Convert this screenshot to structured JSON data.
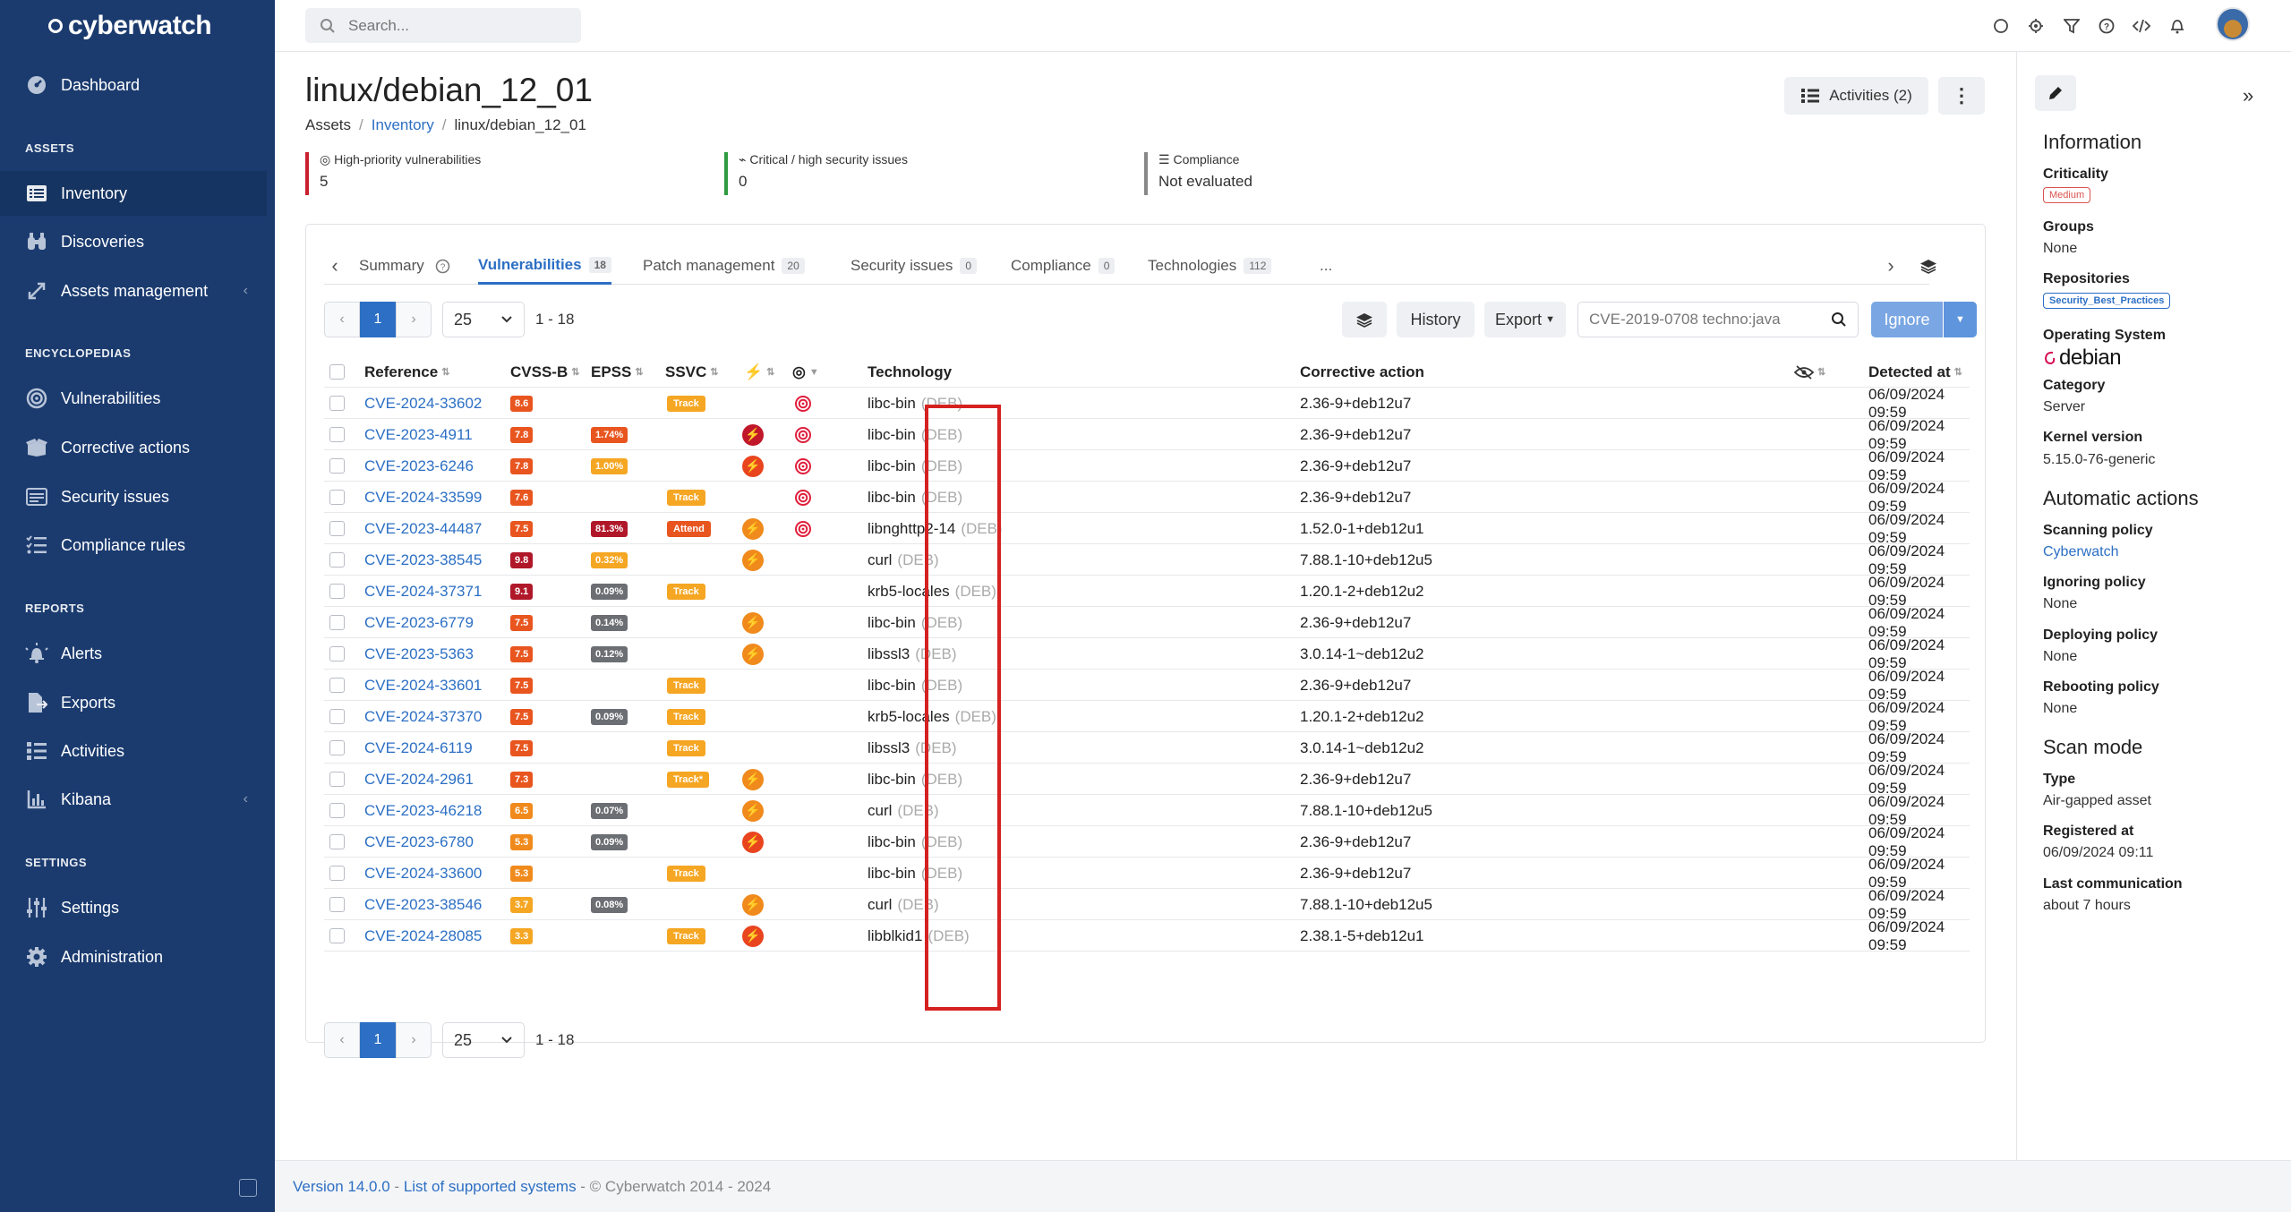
{
  "brand": {
    "name": "cyberwatch"
  },
  "sidebar": {
    "items": [
      {
        "label": "Dashboard"
      },
      {
        "label": "Inventory"
      },
      {
        "label": "Discoveries"
      },
      {
        "label": "Assets management"
      },
      {
        "label": "Vulnerabilities"
      },
      {
        "label": "Corrective actions"
      },
      {
        "label": "Security issues"
      },
      {
        "label": "Compliance rules"
      },
      {
        "label": "Alerts"
      },
      {
        "label": "Exports"
      },
      {
        "label": "Activities"
      },
      {
        "label": "Kibana"
      },
      {
        "label": "Settings"
      },
      {
        "label": "Administration"
      }
    ],
    "sections": [
      "ASSETS",
      "ENCYCLOPEDIAS",
      "REPORTS",
      "SETTINGS"
    ]
  },
  "topbar": {
    "search_placeholder": "Search..."
  },
  "page": {
    "title": "linux/debian_12_01",
    "breadcrumb": [
      "Assets",
      "Inventory",
      "linux/debian_12_01"
    ],
    "activities_label": "Activities (2)",
    "stats": [
      {
        "label": "High-priority vulnerabilities",
        "value": "5",
        "color": "#c8202f"
      },
      {
        "label": "Critical / high security issues",
        "value": "0",
        "color": "#2e9b3e"
      },
      {
        "label": "Compliance",
        "value": "Not evaluated",
        "color": "#888888"
      }
    ]
  },
  "tabs": [
    {
      "label": "Summary",
      "count": ""
    },
    {
      "label": "Vulnerabilities",
      "count": "18"
    },
    {
      "label": "Patch management",
      "count": "20"
    },
    {
      "label": "Security issues",
      "count": "0"
    },
    {
      "label": "Compliance",
      "count": "0"
    },
    {
      "label": "Technologies",
      "count": "112"
    },
    {
      "label": "...",
      "count": ""
    }
  ],
  "toolbar": {
    "page": "1",
    "per_page": "25",
    "range": "1 - 18",
    "history_label": "History",
    "export_label": "Export",
    "filter_value": "CVE-2019-0708 techno:java",
    "ignore_label": "Ignore"
  },
  "table": {
    "headers": {
      "reference": "Reference",
      "cvss": "CVSS-B",
      "epss": "EPSS",
      "ssvc": "SSVC",
      "technology": "Technology",
      "corrective": "Corrective action",
      "detected": "Detected at"
    },
    "rows": [
      {
        "ref": "CVE-2024-33602",
        "cvss": "8.6",
        "cvss_color": "#e8551f",
        "epss": "",
        "epss_color": "",
        "ssvc": "Track",
        "exploit": "",
        "target": true,
        "tech": "libc-bin",
        "pkg": "(DEB)",
        "fix": "2.36-9+deb12u7",
        "date": "06/09/2024 09:59"
      },
      {
        "ref": "CVE-2023-4911",
        "cvss": "7.8",
        "cvss_color": "#e8551f",
        "epss": "1.74%",
        "epss_color": "#e8551f",
        "ssvc": "",
        "exploit": "dark",
        "target": true,
        "tech": "libc-bin",
        "pkg": "(DEB)",
        "fix": "2.36-9+deb12u7",
        "date": "06/09/2024 09:59"
      },
      {
        "ref": "CVE-2023-6246",
        "cvss": "7.8",
        "cvss_color": "#e8551f",
        "epss": "1.00%",
        "epss_color": "#f5a623",
        "ssvc": "",
        "exploit": "red",
        "target": true,
        "tech": "libc-bin",
        "pkg": "(DEB)",
        "fix": "2.36-9+deb12u7",
        "date": "06/09/2024 09:59"
      },
      {
        "ref": "CVE-2024-33599",
        "cvss": "7.6",
        "cvss_color": "#e8551f",
        "epss": "",
        "epss_color": "",
        "ssvc": "Track",
        "exploit": "",
        "target": true,
        "tech": "libc-bin",
        "pkg": "(DEB)",
        "fix": "2.36-9+deb12u7",
        "date": "06/09/2024 09:59"
      },
      {
        "ref": "CVE-2023-44487",
        "cvss": "7.5",
        "cvss_color": "#e8551f",
        "epss": "81.3%",
        "epss_color": "#b0182a",
        "ssvc": "Attend",
        "exploit": "orange",
        "target": true,
        "tech": "libnghttp2-14",
        "pkg": "(DEB)",
        "fix": "1.52.0-1+deb12u1",
        "date": "06/09/2024 09:59"
      },
      {
        "ref": "CVE-2023-38545",
        "cvss": "9.8",
        "cvss_color": "#b0182a",
        "epss": "0.32%",
        "epss_color": "#f5a623",
        "ssvc": "",
        "exploit": "orange",
        "target": false,
        "tech": "curl",
        "pkg": "(DEB)",
        "fix": "7.88.1-10+deb12u5",
        "date": "06/09/2024 09:59"
      },
      {
        "ref": "CVE-2024-37371",
        "cvss": "9.1",
        "cvss_color": "#b0182a",
        "epss": "0.09%",
        "epss_color": "#6b6e73",
        "ssvc": "Track",
        "exploit": "",
        "target": false,
        "tech": "krb5-locales",
        "pkg": "(DEB)",
        "fix": "1.20.1-2+deb12u2",
        "date": "06/09/2024 09:59"
      },
      {
        "ref": "CVE-2023-6779",
        "cvss": "7.5",
        "cvss_color": "#e8551f",
        "epss": "0.14%",
        "epss_color": "#6b6e73",
        "ssvc": "",
        "exploit": "orange",
        "target": false,
        "tech": "libc-bin",
        "pkg": "(DEB)",
        "fix": "2.36-9+deb12u7",
        "date": "06/09/2024 09:59"
      },
      {
        "ref": "CVE-2023-5363",
        "cvss": "7.5",
        "cvss_color": "#e8551f",
        "epss": "0.12%",
        "epss_color": "#6b6e73",
        "ssvc": "",
        "exploit": "orange",
        "target": false,
        "tech": "libssl3",
        "pkg": "(DEB)",
        "fix": "3.0.14-1~deb12u2",
        "date": "06/09/2024 09:59"
      },
      {
        "ref": "CVE-2024-33601",
        "cvss": "7.5",
        "cvss_color": "#e8551f",
        "epss": "",
        "epss_color": "",
        "ssvc": "Track",
        "exploit": "",
        "target": false,
        "tech": "libc-bin",
        "pkg": "(DEB)",
        "fix": "2.36-9+deb12u7",
        "date": "06/09/2024 09:59"
      },
      {
        "ref": "CVE-2024-37370",
        "cvss": "7.5",
        "cvss_color": "#e8551f",
        "epss": "0.09%",
        "epss_color": "#6b6e73",
        "ssvc": "Track",
        "exploit": "",
        "target": false,
        "tech": "krb5-locales",
        "pkg": "(DEB)",
        "fix": "1.20.1-2+deb12u2",
        "date": "06/09/2024 09:59"
      },
      {
        "ref": "CVE-2024-6119",
        "cvss": "7.5",
        "cvss_color": "#e8551f",
        "epss": "",
        "epss_color": "",
        "ssvc": "Track",
        "exploit": "",
        "target": false,
        "tech": "libssl3",
        "pkg": "(DEB)",
        "fix": "3.0.14-1~deb12u2",
        "date": "06/09/2024 09:59"
      },
      {
        "ref": "CVE-2024-2961",
        "cvss": "7.3",
        "cvss_color": "#e8551f",
        "epss": "",
        "epss_color": "",
        "ssvc": "Track*",
        "exploit": "orange",
        "target": false,
        "tech": "libc-bin",
        "pkg": "(DEB)",
        "fix": "2.36-9+deb12u7",
        "date": "06/09/2024 09:59"
      },
      {
        "ref": "CVE-2023-46218",
        "cvss": "6.5",
        "cvss_color": "#f08a1c",
        "epss": "0.07%",
        "epss_color": "#6b6e73",
        "ssvc": "",
        "exploit": "orange",
        "target": false,
        "tech": "curl",
        "pkg": "(DEB)",
        "fix": "7.88.1-10+deb12u5",
        "date": "06/09/2024 09:59"
      },
      {
        "ref": "CVE-2023-6780",
        "cvss": "5.3",
        "cvss_color": "#f08a1c",
        "epss": "0.09%",
        "epss_color": "#6b6e73",
        "ssvc": "",
        "exploit": "red",
        "target": false,
        "tech": "libc-bin",
        "pkg": "(DEB)",
        "fix": "2.36-9+deb12u7",
        "date": "06/09/2024 09:59"
      },
      {
        "ref": "CVE-2024-33600",
        "cvss": "5.3",
        "cvss_color": "#f08a1c",
        "epss": "",
        "epss_color": "",
        "ssvc": "Track",
        "exploit": "",
        "target": false,
        "tech": "libc-bin",
        "pkg": "(DEB)",
        "fix": "2.36-9+deb12u7",
        "date": "06/09/2024 09:59"
      },
      {
        "ref": "CVE-2023-38546",
        "cvss": "3.7",
        "cvss_color": "#f5a623",
        "epss": "0.08%",
        "epss_color": "#6b6e73",
        "ssvc": "",
        "exploit": "orange",
        "target": false,
        "tech": "curl",
        "pkg": "(DEB)",
        "fix": "7.88.1-10+deb12u5",
        "date": "06/09/2024 09:59"
      },
      {
        "ref": "CVE-2024-28085",
        "cvss": "3.3",
        "cvss_color": "#f5a623",
        "epss": "",
        "epss_color": "",
        "ssvc": "Track",
        "exploit": "red",
        "target": false,
        "tech": "libblkid1",
        "pkg": "(DEB)",
        "fix": "2.38.1-5+deb12u1",
        "date": "06/09/2024 09:59"
      }
    ]
  },
  "panel": {
    "information_title": "Information",
    "criticality_label": "Criticality",
    "criticality_value": "Medium",
    "groups_label": "Groups",
    "groups_value": "None",
    "repositories_label": "Repositories",
    "repositories_value": "Security_Best_Practices",
    "os_label": "Operating System",
    "os_value": "debian",
    "category_label": "Category",
    "category_value": "Server",
    "kernel_label": "Kernel version",
    "kernel_value": "5.15.0-76-generic",
    "auto_title": "Automatic actions",
    "scanning_label": "Scanning policy",
    "scanning_value": "Cyberwatch",
    "ignoring_label": "Ignoring policy",
    "ignoring_value": "None",
    "deploying_label": "Deploying policy",
    "deploying_value": "None",
    "rebooting_label": "Rebooting policy",
    "rebooting_value": "None",
    "scanmode_title": "Scan mode",
    "type_label": "Type",
    "type_value": "Air-gapped asset",
    "registered_label": "Registered at",
    "registered_value": "06/09/2024 09:11",
    "lastcomm_label": "Last communication",
    "lastcomm_value": "about 7 hours"
  },
  "footer": {
    "version": "Version 14.0.0",
    "sep": " - ",
    "systems_link": "List of supported systems",
    "copyright": " - © Cyberwatch 2014 - 2024"
  }
}
